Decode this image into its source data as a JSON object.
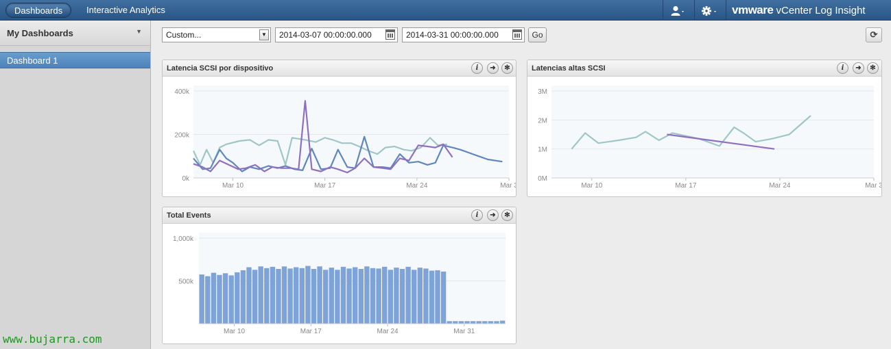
{
  "topbar": {
    "tabs": [
      "Dashboards",
      "Interactive Analytics"
    ],
    "brand_vm": "vmware",
    "brand_product": "vCenter Log Insight",
    "user_icon": "user-icon",
    "settings_icon": "gear-icon"
  },
  "sidebar": {
    "title": "My Dashboards",
    "items": [
      {
        "label": "Dashboard 1",
        "selected": true
      }
    ]
  },
  "watermark": "www.bujarra.com",
  "toolbar": {
    "range_value": "Custom...",
    "start": "2014-03-07 00:00:00.000",
    "end": "2014-03-31 00:00:00.000",
    "go_label": "Go"
  },
  "widgets": [
    {
      "title": "Latencia SCSI por dispositivo"
    },
    {
      "title": "Latencias altas SCSI"
    },
    {
      "title": "Total Events"
    }
  ],
  "chart_data": [
    {
      "type": "line",
      "title": "Latencia SCSI por dispositivo",
      "x_tick_labels": [
        "Mar 10",
        "Mar 17",
        "Mar 24",
        "Mar 3"
      ],
      "y_tick_labels": [
        "0k",
        "200k",
        "400k"
      ],
      "ylim": [
        0,
        400000
      ],
      "xlim": [
        7,
        31
      ],
      "grid": true,
      "colors": [
        "#9fc6c6",
        "#5f86bd",
        "#8f6fc0"
      ],
      "series": [
        {
          "x": [
            7.0,
            7.5,
            8.0,
            8.5,
            9.0,
            9.5,
            10.5,
            11.3,
            12.0,
            12.7,
            13.4,
            14.0,
            14.5,
            15.0,
            15.5,
            16.3,
            17.0,
            17.6,
            18.3,
            19.0,
            19.6,
            20.3,
            21.0,
            21.6,
            22.3,
            23.0,
            23.6,
            24.3,
            25.0,
            25.6,
            26.3
          ],
          "y": [
            125000,
            60000,
            130000,
            70000,
            140000,
            155000,
            170000,
            175000,
            150000,
            175000,
            170000,
            60000,
            185000,
            180000,
            175000,
            165000,
            185000,
            175000,
            160000,
            160000,
            145000,
            125000,
            110000,
            140000,
            145000,
            130000,
            125000,
            140000,
            185000,
            150000,
            155000
          ]
        },
        {
          "x": [
            7.0,
            7.7,
            8.3,
            9.0,
            9.5,
            10.0,
            10.7,
            11.3,
            12.0,
            12.7,
            13.4,
            14.0,
            14.7,
            15.3,
            16.0,
            16.7,
            17.4,
            18.0,
            18.7,
            19.3,
            20.0,
            20.7,
            21.4,
            22.0,
            22.7,
            23.4,
            24.1,
            24.8,
            25.4,
            26.0,
            26.7,
            27.3,
            28.0,
            28.7,
            29.4,
            30.5
          ],
          "y": [
            90000,
            40000,
            45000,
            130000,
            90000,
            70000,
            30000,
            50000,
            40000,
            55000,
            45000,
            55000,
            40000,
            35000,
            135000,
            40000,
            45000,
            130000,
            50000,
            45000,
            190000,
            50000,
            50000,
            45000,
            110000,
            70000,
            75000,
            60000,
            70000,
            150000,
            140000,
            130000,
            115000,
            100000,
            85000,
            75000
          ]
        },
        {
          "x": [
            7.0,
            7.7,
            8.3,
            9.0,
            9.7,
            10.4,
            11.0,
            11.7,
            12.4,
            13.0,
            13.7,
            14.4,
            15.0,
            15.5,
            16.0,
            16.7,
            17.4,
            18.0,
            18.7,
            19.3,
            20.0,
            20.7,
            21.4,
            22.0,
            22.7,
            23.4,
            24.1,
            24.8,
            25.4,
            26.0,
            26.7
          ],
          "y": [
            65000,
            50000,
            30000,
            80000,
            60000,
            40000,
            45000,
            60000,
            30000,
            50000,
            45000,
            45000,
            40000,
            355000,
            40000,
            30000,
            50000,
            40000,
            25000,
            45000,
            90000,
            50000,
            45000,
            40000,
            90000,
            80000,
            150000,
            145000,
            140000,
            155000,
            95000
          ]
        }
      ]
    },
    {
      "type": "line",
      "title": "Latencias altas SCSI",
      "x_tick_labels": [
        "Mar 10",
        "Mar 17",
        "Mar 24",
        "Mar 3"
      ],
      "y_tick_labels": [
        "0M",
        "1M",
        "2M",
        "3M"
      ],
      "ylim": [
        0,
        3000000
      ],
      "xlim": [
        7,
        31
      ],
      "grid": true,
      "colors": [
        "#9fc6c6",
        "#8f6fc0"
      ],
      "series": [
        {
          "x": [
            8.5,
            9.5,
            10.5,
            12.0,
            13.3,
            14.0,
            15.0,
            16.0,
            17.0,
            18.0,
            19.5,
            20.6,
            21.3,
            22.2,
            23.4,
            24.7,
            26.3
          ],
          "y": [
            1000000,
            1550000,
            1200000,
            1300000,
            1400000,
            1600000,
            1300000,
            1550000,
            1450000,
            1350000,
            1100000,
            1750000,
            1550000,
            1250000,
            1350000,
            1500000,
            2150000
          ]
        },
        {
          "x": [
            15.6,
            23.6
          ],
          "y": [
            1500000,
            1000000
          ]
        }
      ]
    },
    {
      "type": "bar",
      "title": "Total Events",
      "x_tick_labels": [
        "Mar 10",
        "Mar 17",
        "Mar 24",
        "Mar 31"
      ],
      "y_tick_labels": [
        "500k",
        "1,000k"
      ],
      "ylim": [
        0,
        1000000
      ],
      "grid": true,
      "color": "#7ea3d8",
      "values": [
        575000,
        555000,
        595000,
        570000,
        590000,
        565000,
        600000,
        625000,
        660000,
        630000,
        670000,
        650000,
        665000,
        640000,
        670000,
        645000,
        660000,
        650000,
        675000,
        640000,
        670000,
        630000,
        655000,
        630000,
        665000,
        645000,
        660000,
        640000,
        670000,
        650000,
        645000,
        665000,
        630000,
        655000,
        640000,
        665000,
        630000,
        655000,
        645000,
        620000,
        625000,
        610000,
        30000,
        30000,
        30000,
        30000,
        30000,
        30000,
        30000,
        30000,
        30000,
        35000
      ]
    }
  ]
}
